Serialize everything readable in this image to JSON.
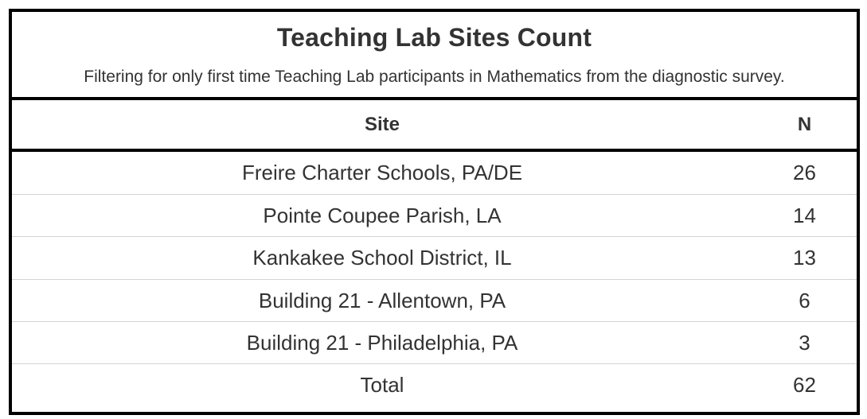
{
  "chart_data": {
    "type": "table",
    "title": "Teaching Lab Sites Count",
    "subtitle": "Filtering for only first time Teaching Lab participants in Mathematics from the diagnostic survey.",
    "columns": [
      "Site",
      "N"
    ],
    "rows": [
      {
        "site": "Freire Charter Schools, PA/DE",
        "n": "26"
      },
      {
        "site": "Pointe Coupee Parish, LA",
        "n": "14"
      },
      {
        "site": "Kankakee School District, IL",
        "n": "13"
      },
      {
        "site": "Building 21 - Allentown, PA",
        "n": "6"
      },
      {
        "site": "Building 21 - Philadelphia, PA",
        "n": "3"
      },
      {
        "site": "Total",
        "n": "62"
      }
    ]
  },
  "colors": {
    "border": "#000000",
    "text": "#333333",
    "row_divider": "#d4d4d4",
    "background": "#ffffff"
  }
}
